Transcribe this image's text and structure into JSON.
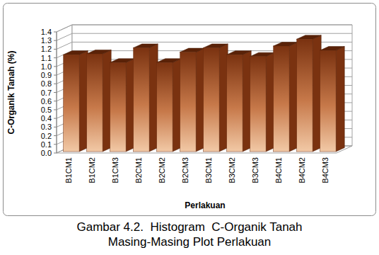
{
  "chart_data": {
    "type": "bar",
    "title": "Gambar 4.2.  Histogram  C-Organik Tanah Masing-Masing Plot Perlakuan",
    "x_label": "Perlakuan",
    "y_label": "C-Organik Tanah (%)",
    "categories": [
      "B1CM1",
      "B1CM2",
      "B1CM3",
      "B2CM1",
      "B2CM2",
      "B2CM3",
      "B3CM1",
      "B3CM2",
      "B3CM3",
      "B4CM1",
      "B4CM2",
      "B4CM3"
    ],
    "values": [
      1.12,
      1.13,
      1.03,
      1.2,
      1.03,
      1.15,
      1.2,
      1.12,
      1.1,
      1.22,
      1.3,
      1.17
    ],
    "color": "#7a3210",
    "ylim": [
      0,
      1.4
    ],
    "yticks": [
      {
        "value": 0,
        "label": "0.0"
      },
      0.1,
      0.2,
      0.3,
      0.4,
      0.5,
      0.6,
      0.7,
      0.8,
      0.9,
      {
        "value": 1,
        "label": "1.0"
      },
      1.1,
      1.2,
      1.3,
      1.4
    ],
    "grid": true
  }
}
